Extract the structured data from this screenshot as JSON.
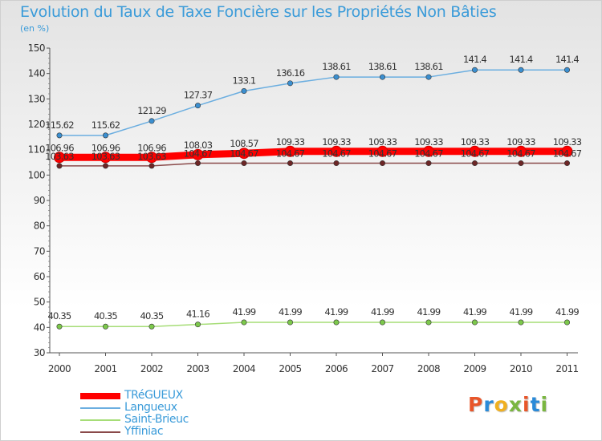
{
  "title": "Evolution du Taux de Taxe Foncière sur les Propriétés Non Bâties",
  "subtitle": "(en %)",
  "logo": {
    "text": "Proxiti",
    "colors": [
      "#e8562a",
      "#2a8ad8",
      "#f0b020",
      "#7ab640",
      "#e8562a",
      "#2a8ad8",
      "#7ab640"
    ]
  },
  "chart_data": {
    "type": "line",
    "title": "Evolution du Taux de Taxe Foncière sur les Propriétés Non Bâties",
    "xlabel": "",
    "ylabel": "(en %)",
    "x": [
      "2000",
      "2001",
      "2002",
      "2003",
      "2004",
      "2005",
      "2006",
      "2007",
      "2008",
      "2009",
      "2010",
      "2011"
    ],
    "ylim": [
      30,
      150
    ],
    "yticks": [
      30,
      40,
      50,
      60,
      70,
      80,
      90,
      100,
      110,
      120,
      130,
      140,
      150
    ],
    "grid": false,
    "legend": "bottom-left",
    "series": [
      {
        "name": "TRéGUEUX",
        "color": "#ff0000",
        "width": 9,
        "values": [
          106.96,
          106.96,
          106.96,
          108.03,
          108.57,
          109.33,
          109.33,
          109.33,
          109.33,
          109.33,
          109.33,
          109.33
        ],
        "labels": [
          "106.96",
          "106.96",
          "106.96",
          "108.03",
          "108.57",
          "109.33",
          "109.33",
          "109.33",
          "109.33",
          "109.33",
          "109.33",
          "109.33"
        ]
      },
      {
        "name": "Langueux",
        "color": "#6baee0",
        "width": 1.5,
        "marker": "#3b8fd0",
        "values": [
          115.62,
          115.62,
          121.29,
          127.37,
          133.1,
          136.16,
          138.61,
          138.61,
          138.61,
          141.4,
          141.4,
          141.4
        ],
        "labels": [
          "115.62",
          "115.62",
          "121.29",
          "127.37",
          "133.1",
          "136.16",
          "138.61",
          "138.61",
          "138.61",
          "141.4",
          "141.4",
          "141.4"
        ]
      },
      {
        "name": "Saint-Brieuc",
        "color": "#a6dd77",
        "width": 1.5,
        "marker": "#7cc84b",
        "values": [
          40.35,
          40.35,
          40.35,
          41.16,
          41.99,
          41.99,
          41.99,
          41.99,
          41.99,
          41.99,
          41.99,
          41.99
        ],
        "labels": [
          "40.35",
          "40.35",
          "40.35",
          "41.16",
          "41.99",
          "41.99",
          "41.99",
          "41.99",
          "41.99",
          "41.99",
          "41.99",
          "41.99"
        ]
      },
      {
        "name": "Yffiniac",
        "color": "#8a4a4a",
        "width": 1.5,
        "marker": "#6d2626",
        "values": [
          103.63,
          103.63,
          103.63,
          104.67,
          104.67,
          104.67,
          104.67,
          104.67,
          104.67,
          104.67,
          104.67,
          104.67
        ],
        "labels": [
          "103.63",
          "103.63",
          "103.63",
          "104.67",
          "104.67",
          "104.67",
          "104.67",
          "104.67",
          "104.67",
          "104.67",
          "104.67",
          "104.67"
        ]
      }
    ]
  }
}
